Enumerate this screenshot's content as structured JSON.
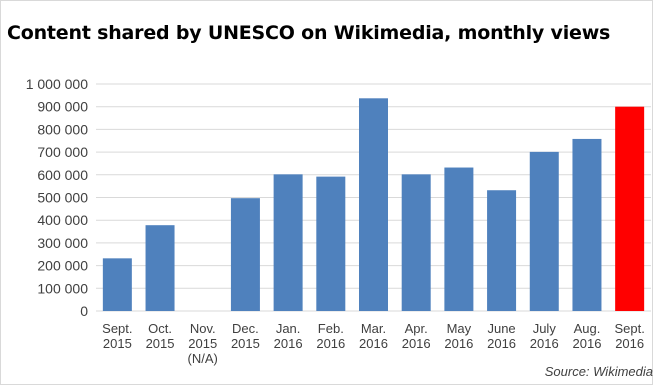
{
  "chart_data": {
    "type": "bar",
    "title": "Content shared by UNESCO on Wikimedia, monthly views",
    "xlabel": "",
    "ylabel": "",
    "ylim": [
      0,
      1000000
    ],
    "yticks": [
      0,
      100000,
      200000,
      300000,
      400000,
      500000,
      600000,
      700000,
      800000,
      900000,
      1000000
    ],
    "ytick_labels": [
      "0",
      "100 000",
      "200 000",
      "300 000",
      "400 000",
      "500 000",
      "600 000",
      "700 000",
      "800 000",
      "900 000",
      "1 000 000"
    ],
    "categories": [
      [
        "Sept.",
        "2015"
      ],
      [
        "Oct.",
        "2015"
      ],
      [
        "Nov.",
        "2015",
        "(N/A)"
      ],
      [
        "Dec.",
        "2015"
      ],
      [
        "Jan.",
        "2016"
      ],
      [
        "Feb.",
        "2016"
      ],
      [
        "Mar.",
        "2016"
      ],
      [
        "Apr.",
        "2016"
      ],
      [
        "May",
        "2016"
      ],
      [
        "June",
        "2016"
      ],
      [
        "July",
        "2016"
      ],
      [
        "Aug.",
        "2016"
      ],
      [
        "Sept.",
        "2016"
      ]
    ],
    "values": [
      232000,
      378000,
      null,
      497000,
      602000,
      592000,
      937000,
      602000,
      632000,
      532000,
      701000,
      758000,
      900000
    ],
    "bar_colors": [
      "#4f81bd",
      "#4f81bd",
      "#4f81bd",
      "#4f81bd",
      "#4f81bd",
      "#4f81bd",
      "#4f81bd",
      "#4f81bd",
      "#4f81bd",
      "#4f81bd",
      "#4f81bd",
      "#4f81bd",
      "#ff0000"
    ],
    "grid": true,
    "grid_color": "#d9d9d9",
    "legend": "none"
  },
  "source": "Source: Wikimedia"
}
